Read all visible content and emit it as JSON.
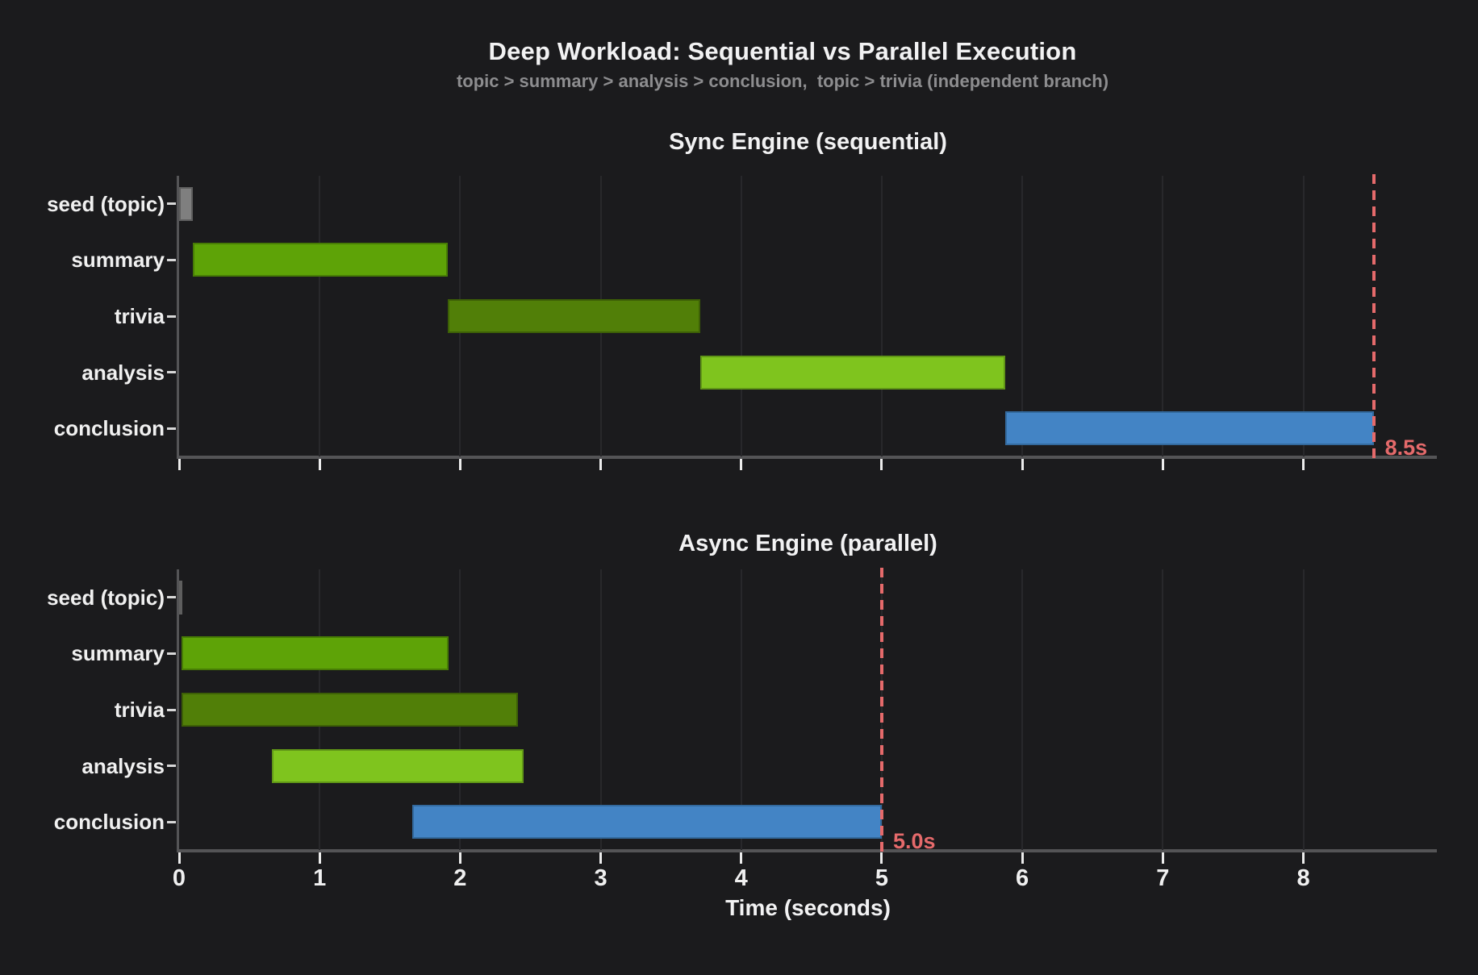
{
  "figure": {
    "title": "Deep Workload: Sequential vs Parallel Execution",
    "subtitle": "topic > summary > analysis > conclusion,  topic > trivia (independent branch)",
    "xlabel": "Time (seconds)",
    "colors": {
      "background": "#1b1b1d",
      "text": "#f2f2f3",
      "subtitle_text": "#8d8d8f",
      "spine": "#545456",
      "gridline": "#28282b",
      "deadline": "#e56a6b"
    }
  },
  "chart_data": [
    {
      "type": "bar",
      "variant": "gantt-horizontal",
      "title": "Sync Engine (sequential)",
      "categories": [
        "seed (topic)",
        "summary",
        "trivia",
        "analysis",
        "conclusion"
      ],
      "bars": [
        {
          "task": "seed (topic)",
          "start": 0,
          "end": 0.1,
          "color": "#7f7f7f",
          "edge": "#5e5e5e"
        },
        {
          "task": "summary",
          "start": 0.1,
          "end": 1.91,
          "color": "#5ea307",
          "edge": "#477c05"
        },
        {
          "task": "trivia",
          "start": 1.91,
          "end": 3.71,
          "color": "#517f08",
          "edge": "#3d6006"
        },
        {
          "task": "analysis",
          "start": 3.71,
          "end": 5.88,
          "color": "#7fc41e",
          "edge": "#619717"
        },
        {
          "task": "conclusion",
          "start": 5.88,
          "end": 8.5,
          "color": "#4384c5",
          "edge": "#336a9e"
        }
      ],
      "total_time": 8.5,
      "total_label": "8.5s",
      "x_ticks": [
        0,
        1,
        2,
        3,
        4,
        5,
        6,
        7,
        8
      ],
      "show_x_tick_labels": false,
      "xlim": [
        0,
        8.95
      ],
      "grid": true,
      "legend": false
    },
    {
      "type": "bar",
      "variant": "gantt-horizontal",
      "title": "Async Engine (parallel)",
      "categories": [
        "seed (topic)",
        "summary",
        "trivia",
        "analysis",
        "conclusion"
      ],
      "bars": [
        {
          "task": "seed (topic)",
          "start": 0,
          "end": 0.02,
          "color": "#7f7f7f",
          "edge": "#5e5e5e"
        },
        {
          "task": "summary",
          "start": 0.02,
          "end": 1.92,
          "color": "#5ea307",
          "edge": "#477c05"
        },
        {
          "task": "trivia",
          "start": 0.02,
          "end": 2.41,
          "color": "#517f08",
          "edge": "#3d6006"
        },
        {
          "task": "analysis",
          "start": 0.66,
          "end": 2.45,
          "color": "#7fc41e",
          "edge": "#619717"
        },
        {
          "task": "conclusion",
          "start": 1.66,
          "end": 5.0,
          "color": "#4384c5",
          "edge": "#336a9e"
        }
      ],
      "total_time": 5.0,
      "total_label": "5.0s",
      "x_ticks": [
        0,
        1,
        2,
        3,
        4,
        5,
        6,
        7,
        8
      ],
      "show_x_tick_labels": true,
      "xlim": [
        0,
        8.95
      ],
      "grid": true,
      "legend": false
    }
  ]
}
